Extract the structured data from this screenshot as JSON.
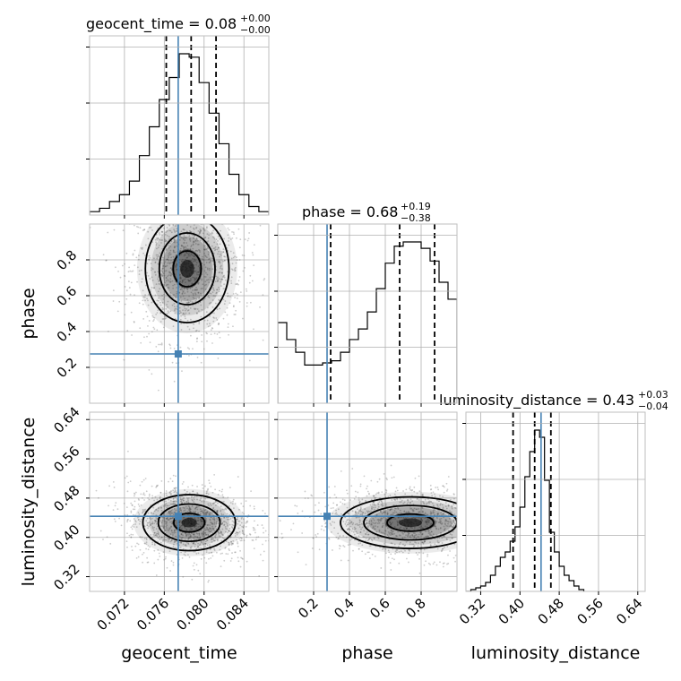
{
  "chart_data": {
    "type": "corner",
    "parameters": [
      "geocent_time",
      "phase",
      "luminosity_distance"
    ],
    "titles": [
      {
        "param": "geocent_time",
        "text": "geocent_time = 0.08",
        "plus": "+0.00",
        "minus": "−0.00"
      },
      {
        "param": "phase",
        "text": "phase = 0.68",
        "plus": "+0.19",
        "minus": "−0.38"
      },
      {
        "param": "luminosity_distance",
        "text": "luminosity_distance = 0.43",
        "plus": "+0.03",
        "minus": "−0.04"
      }
    ],
    "axes": {
      "geocent_time": {
        "label": "geocent_time",
        "range": [
          0.0685,
          0.0865
        ],
        "ticks": [
          0.072,
          0.076,
          0.08,
          0.084
        ],
        "tick_labels": [
          "0.072",
          "0.076",
          "0.080",
          "0.084"
        ]
      },
      "phase": {
        "label": "phase",
        "range": [
          0.0,
          1.0
        ],
        "ticks": [
          0.2,
          0.4,
          0.6,
          0.8
        ],
        "tick_labels": [
          "0.2",
          "0.4",
          "0.6",
          "0.8"
        ]
      },
      "luminosity_distance": {
        "label": "luminosity_distance",
        "range": [
          0.29,
          0.655
        ],
        "ticks": [
          0.32,
          0.4,
          0.48,
          0.56,
          0.64
        ],
        "tick_labels": [
          "0.32",
          "0.40",
          "0.48",
          "0.56",
          "0.64"
        ]
      }
    },
    "truths": {
      "geocent_time": 0.0774,
      "phase": 0.275,
      "luminosity_distance": 0.443
    },
    "quantiles": {
      "geocent_time": [
        0.0762,
        0.0787,
        0.0812
      ],
      "phase": [
        0.295,
        0.68,
        0.875
      ],
      "luminosity_distance": [
        0.386,
        0.43,
        0.463
      ]
    },
    "histograms": {
      "geocent_time": {
        "edges": [
          0.0685,
          0.0695,
          0.0705,
          0.0715,
          0.0725,
          0.0735,
          0.0745,
          0.0755,
          0.0765,
          0.0775,
          0.0785,
          0.0795,
          0.0805,
          0.0815,
          0.0825,
          0.0835,
          0.0845,
          0.0855,
          0.0865
        ],
        "counts": [
          2,
          4,
          8,
          12,
          20,
          35,
          52,
          68,
          81,
          95,
          93,
          78,
          60,
          42,
          24,
          12,
          5,
          2
        ]
      },
      "phase": {
        "edges": [
          0.0,
          0.05,
          0.1,
          0.15,
          0.2,
          0.25,
          0.3,
          0.35,
          0.4,
          0.45,
          0.5,
          0.55,
          0.6,
          0.65,
          0.7,
          0.75,
          0.8,
          0.85,
          0.9,
          0.95,
          1.0
        ],
        "counts": [
          38,
          30,
          24,
          18,
          18,
          19,
          20,
          24,
          30,
          35,
          43,
          54,
          66,
          74,
          76,
          76,
          73,
          67,
          57,
          49
        ]
      },
      "luminosity_distance": {
        "edges": [
          0.29,
          0.3,
          0.31,
          0.32,
          0.33,
          0.34,
          0.35,
          0.36,
          0.37,
          0.38,
          0.39,
          0.4,
          0.41,
          0.42,
          0.43,
          0.44,
          0.45,
          0.46,
          0.47,
          0.48,
          0.49,
          0.5,
          0.51,
          0.52,
          0.53
        ],
        "counts": [
          0,
          1,
          2,
          3,
          5,
          9,
          14,
          19,
          22,
          28,
          36,
          47,
          64,
          78,
          90,
          86,
          62,
          33,
          22,
          14,
          9,
          6,
          3,
          1
        ]
      }
    },
    "joint": [
      {
        "x": "geocent_time",
        "y": "phase",
        "mean": [
          0.0783,
          0.75
        ],
        "sd": [
          0.0028,
          0.2
        ],
        "rho": 0.0,
        "contour_levels": [
          0.5,
          1.0,
          1.5
        ]
      },
      {
        "x": "geocent_time",
        "y": "luminosity_distance",
        "mean": [
          0.0785,
          0.43
        ],
        "sd": [
          0.0031,
          0.038
        ],
        "rho": -0.15,
        "contour_levels": [
          0.5,
          1.0,
          1.5
        ]
      },
      {
        "x": "phase",
        "y": "luminosity_distance",
        "mean": [
          0.74,
          0.43
        ],
        "sd": [
          0.26,
          0.035
        ],
        "rho": -0.1,
        "contour_levels": [
          0.5,
          1.0,
          1.5
        ]
      }
    ],
    "grid": true
  }
}
